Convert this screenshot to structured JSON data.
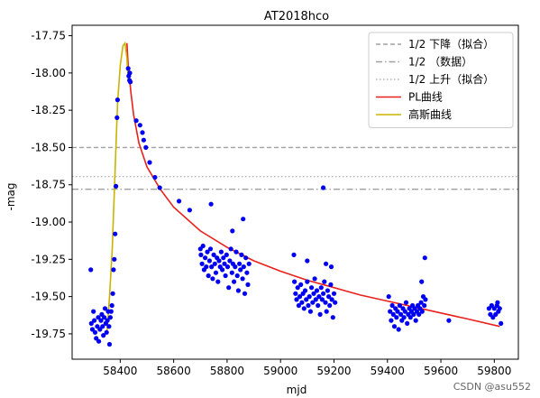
{
  "chart_data": {
    "type": "scatter",
    "title": "AT2018hco",
    "xlabel": "mjd",
    "ylabel": "-mag",
    "xlim": [
      58220,
      59890
    ],
    "ylim": [
      -17.68,
      -19.92
    ],
    "x_ticks": [
      {
        "value": 58400,
        "label": "58400"
      },
      {
        "value": 58600,
        "label": "58600"
      },
      {
        "value": 58800,
        "label": "58800"
      },
      {
        "value": 59000,
        "label": "59000"
      },
      {
        "value": 59200,
        "label": "59200"
      },
      {
        "value": 59400,
        "label": "59400"
      },
      {
        "value": 59600,
        "label": "59600"
      },
      {
        "value": 59800,
        "label": "59800"
      }
    ],
    "y_ticks": [
      {
        "value": -17.75,
        "label": "-17.75"
      },
      {
        "value": -18.0,
        "label": "-18.00"
      },
      {
        "value": -18.25,
        "label": "-18.25"
      },
      {
        "value": -18.5,
        "label": "-18.50"
      },
      {
        "value": -18.75,
        "label": "-18.75"
      },
      {
        "value": -19.0,
        "label": "-19.00"
      },
      {
        "value": -19.25,
        "label": "-19.25"
      },
      {
        "value": -19.5,
        "label": "-19.50"
      },
      {
        "value": -19.75,
        "label": "-19.75"
      }
    ],
    "hlines": [
      {
        "name": "1/2 下降（拟合）",
        "y": -18.5,
        "color": "#a0a0a0",
        "style": "dashed"
      },
      {
        "name": "1/2 （数据）",
        "y": -18.78,
        "color": "#a0a0a0",
        "style": "dashdot"
      },
      {
        "name": "1/2 上升（拟合）",
        "y": -18.695,
        "color": "#b0b0b0",
        "style": "dotted"
      }
    ],
    "series": [
      {
        "name": "PL曲线",
        "type": "line",
        "color": "#e8211c",
        "points": [
          [
            58425,
            -17.8
          ],
          [
            58430,
            -17.95
          ],
          [
            58440,
            -18.13
          ],
          [
            58450,
            -18.28
          ],
          [
            58470,
            -18.47
          ],
          [
            58500,
            -18.63
          ],
          [
            58550,
            -18.78
          ],
          [
            58600,
            -18.9
          ],
          [
            58700,
            -19.06
          ],
          [
            58800,
            -19.17
          ],
          [
            58900,
            -19.26
          ],
          [
            59000,
            -19.33
          ],
          [
            59100,
            -19.39
          ],
          [
            59200,
            -19.44
          ],
          [
            59300,
            -19.49
          ],
          [
            59400,
            -19.53
          ],
          [
            59500,
            -19.57
          ],
          [
            59600,
            -19.61
          ],
          [
            59700,
            -19.65
          ],
          [
            59820,
            -19.7
          ]
        ]
      },
      {
        "name": "高斯曲线",
        "type": "line",
        "color": "#c8b400",
        "points": [
          [
            58350,
            -19.75
          ],
          [
            58360,
            -19.5
          ],
          [
            58370,
            -19.18
          ],
          [
            58380,
            -18.7
          ],
          [
            58390,
            -18.2
          ],
          [
            58400,
            -17.95
          ],
          [
            58410,
            -17.82
          ],
          [
            58418,
            -17.8
          ],
          [
            58425,
            -17.9
          ],
          [
            58430,
            -18.05
          ]
        ]
      },
      {
        "name": "data",
        "type": "scatter",
        "color": "#0000f0",
        "points": [
          [
            58290,
            -19.32
          ],
          [
            58292,
            -19.68
          ],
          [
            58296,
            -19.72
          ],
          [
            58300,
            -19.6
          ],
          [
            58303,
            -19.66
          ],
          [
            58306,
            -19.74
          ],
          [
            58310,
            -19.78
          ],
          [
            58314,
            -19.7
          ],
          [
            58318,
            -19.64
          ],
          [
            58320,
            -19.8
          ],
          [
            58324,
            -19.72
          ],
          [
            58328,
            -19.66
          ],
          [
            58331,
            -19.62
          ],
          [
            58334,
            -19.7
          ],
          [
            58337,
            -19.76
          ],
          [
            58340,
            -19.64
          ],
          [
            58343,
            -19.58
          ],
          [
            58346,
            -19.68
          ],
          [
            58349,
            -19.74
          ],
          [
            58352,
            -19.66
          ],
          [
            58355,
            -19.6
          ],
          [
            58358,
            -19.7
          ],
          [
            58360,
            -19.82
          ],
          [
            58363,
            -19.64
          ],
          [
            58366,
            -19.6
          ],
          [
            58369,
            -19.56
          ],
          [
            58372,
            -19.48
          ],
          [
            58375,
            -19.32
          ],
          [
            58378,
            -19.25
          ],
          [
            58381,
            -19.08
          ],
          [
            58384,
            -18.76
          ],
          [
            58388,
            -18.3
          ],
          [
            58390,
            -18.18
          ],
          [
            58430,
            -17.97
          ],
          [
            58432,
            -18.02
          ],
          [
            58435,
            -18.05
          ],
          [
            58438,
            -18.06
          ],
          [
            58436,
            -18.0
          ],
          [
            58460,
            -18.32
          ],
          [
            58474,
            -18.35
          ],
          [
            58483,
            -18.4
          ],
          [
            58488,
            -18.45
          ],
          [
            58496,
            -18.5
          ],
          [
            58510,
            -18.6
          ],
          [
            58530,
            -18.7
          ],
          [
            58548,
            -18.77
          ],
          [
            58620,
            -18.86
          ],
          [
            58660,
            -18.92
          ],
          [
            58700,
            -19.18
          ],
          [
            58702,
            -19.22
          ],
          [
            58706,
            -19.28
          ],
          [
            58710,
            -19.16
          ],
          [
            58714,
            -19.32
          ],
          [
            58718,
            -19.24
          ],
          [
            58722,
            -19.3
          ],
          [
            58726,
            -19.2
          ],
          [
            58730,
            -19.36
          ],
          [
            58734,
            -19.26
          ],
          [
            58738,
            -19.18
          ],
          [
            58742,
            -19.3
          ],
          [
            58746,
            -19.38
          ],
          [
            58750,
            -19.22
          ],
          [
            58754,
            -19.28
          ],
          [
            58758,
            -19.34
          ],
          [
            58762,
            -19.24
          ],
          [
            58766,
            -19.4
          ],
          [
            58770,
            -19.26
          ],
          [
            58774,
            -19.3
          ],
          [
            58778,
            -19.2
          ],
          [
            58782,
            -19.32
          ],
          [
            58786,
            -19.24
          ],
          [
            58790,
            -19.28
          ],
          [
            58794,
            -19.36
          ],
          [
            58798,
            -19.22
          ],
          [
            58802,
            -19.3
          ],
          [
            58806,
            -19.44
          ],
          [
            58810,
            -19.26
          ],
          [
            58814,
            -19.18
          ],
          [
            58818,
            -19.34
          ],
          [
            58822,
            -19.28
          ],
          [
            58826,
            -19.4
          ],
          [
            58830,
            -19.3
          ],
          [
            58834,
            -19.2
          ],
          [
            58838,
            -19.36
          ],
          [
            58842,
            -19.46
          ],
          [
            58846,
            -19.28
          ],
          [
            58850,
            -19.32
          ],
          [
            58854,
            -19.22
          ],
          [
            58858,
            -19.38
          ],
          [
            58862,
            -19.3
          ],
          [
            58866,
            -19.48
          ],
          [
            58870,
            -19.24
          ],
          [
            58874,
            -19.34
          ],
          [
            58878,
            -19.42
          ],
          [
            58882,
            -19.28
          ],
          [
            58740,
            -18.88
          ],
          [
            58820,
            -19.06
          ],
          [
            58860,
            -18.98
          ],
          [
            59050,
            -19.22
          ],
          [
            59052,
            -19.4
          ],
          [
            59056,
            -19.48
          ],
          [
            59060,
            -19.52
          ],
          [
            59064,
            -19.44
          ],
          [
            59068,
            -19.56
          ],
          [
            59072,
            -19.5
          ],
          [
            59076,
            -19.42
          ],
          [
            59080,
            -19.54
          ],
          [
            59084,
            -19.48
          ],
          [
            59088,
            -19.58
          ],
          [
            59092,
            -19.46
          ],
          [
            59096,
            -19.52
          ],
          [
            59100,
            -19.4
          ],
          [
            59104,
            -19.56
          ],
          [
            59108,
            -19.5
          ],
          [
            59112,
            -19.6
          ],
          [
            59116,
            -19.44
          ],
          [
            59120,
            -19.54
          ],
          [
            59124,
            -19.48
          ],
          [
            59128,
            -19.38
          ],
          [
            59132,
            -19.52
          ],
          [
            59136,
            -19.46
          ],
          [
            59140,
            -19.56
          ],
          [
            59144,
            -19.5
          ],
          [
            59148,
            -19.62
          ],
          [
            59152,
            -19.44
          ],
          [
            59156,
            -19.52
          ],
          [
            59160,
            -19.48
          ],
          [
            59164,
            -19.4
          ],
          [
            59168,
            -19.54
          ],
          [
            59172,
            -19.6
          ],
          [
            59176,
            -19.46
          ],
          [
            59180,
            -19.5
          ],
          [
            59184,
            -19.56
          ],
          [
            59188,
            -19.42
          ],
          [
            59192,
            -19.52
          ],
          [
            59196,
            -19.64
          ],
          [
            59200,
            -19.48
          ],
          [
            59204,
            -19.54
          ],
          [
            59100,
            -19.26
          ],
          [
            59170,
            -19.28
          ],
          [
            59190,
            -19.3
          ],
          [
            59160,
            -18.77
          ],
          [
            59405,
            -19.5
          ],
          [
            59410,
            -19.6
          ],
          [
            59414,
            -19.66
          ],
          [
            59418,
            -19.56
          ],
          [
            59422,
            -19.62
          ],
          [
            59426,
            -19.7
          ],
          [
            59430,
            -19.58
          ],
          [
            59434,
            -19.64
          ],
          [
            59438,
            -19.6
          ],
          [
            59442,
            -19.72
          ],
          [
            59446,
            -19.56
          ],
          [
            59450,
            -19.62
          ],
          [
            59454,
            -19.66
          ],
          [
            59458,
            -19.58
          ],
          [
            59462,
            -19.64
          ],
          [
            59466,
            -19.6
          ],
          [
            59470,
            -19.54
          ],
          [
            59474,
            -19.68
          ],
          [
            59478,
            -19.62
          ],
          [
            59482,
            -19.58
          ],
          [
            59486,
            -19.64
          ],
          [
            59490,
            -19.6
          ],
          [
            59494,
            -19.56
          ],
          [
            59498,
            -19.62
          ],
          [
            59502,
            -19.58
          ],
          [
            59506,
            -19.66
          ],
          [
            59510,
            -19.6
          ],
          [
            59514,
            -19.56
          ],
          [
            59518,
            -19.62
          ],
          [
            59522,
            -19.58
          ],
          [
            59526,
            -19.54
          ],
          [
            59530,
            -19.6
          ],
          [
            59534,
            -19.5
          ],
          [
            59538,
            -19.56
          ],
          [
            59542,
            -19.52
          ],
          [
            59540,
            -19.24
          ],
          [
            59528,
            -19.4
          ],
          [
            59630,
            -19.66
          ],
          [
            59780,
            -19.58
          ],
          [
            59785,
            -19.62
          ],
          [
            59790,
            -19.56
          ],
          [
            59795,
            -19.64
          ],
          [
            59800,
            -19.58
          ],
          [
            59805,
            -19.62
          ],
          [
            59810,
            -19.56
          ],
          [
            59815,
            -19.6
          ],
          [
            59820,
            -19.58
          ],
          [
            59825,
            -19.68
          ],
          [
            59812,
            -19.54
          ]
        ]
      }
    ],
    "legend": {
      "position": "top-right",
      "entries": [
        {
          "label": "1/2 下降（拟合）",
          "color": "#a0a0a0",
          "style": "dashed"
        },
        {
          "label": "1/2 （数据）",
          "color": "#a0a0a0",
          "style": "dashdot"
        },
        {
          "label": "1/2 上升（拟合）",
          "color": "#b0b0b0",
          "style": "dotted"
        },
        {
          "label": "PL曲线",
          "color": "#e8211c",
          "style": "solid"
        },
        {
          "label": "高斯曲线",
          "color": "#c8b400",
          "style": "solid"
        }
      ]
    },
    "grid": false
  },
  "watermark": "CSDN @asu552"
}
